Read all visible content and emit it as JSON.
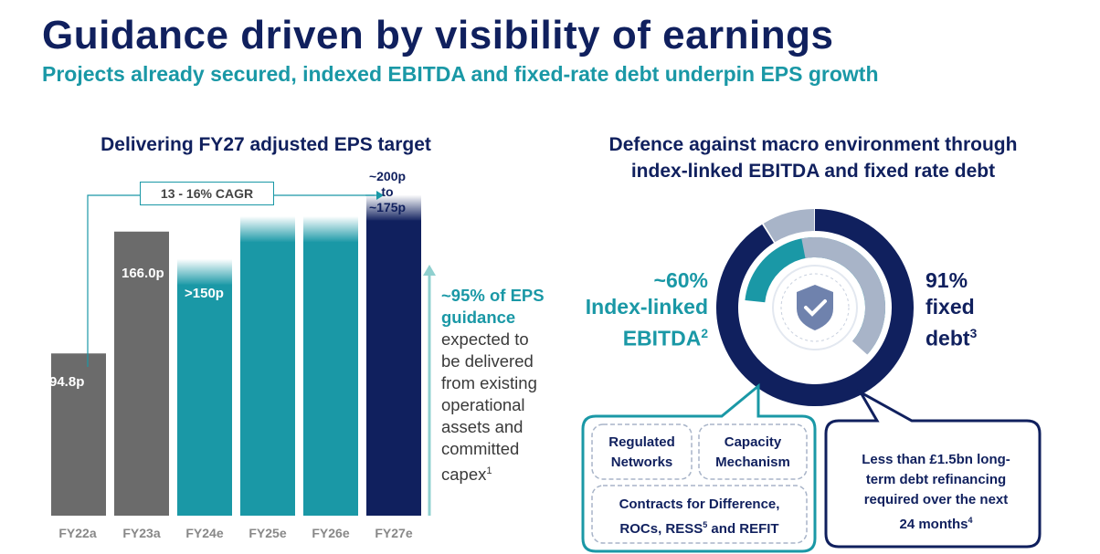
{
  "title": "Guidance driven by visibility of earnings",
  "subtitle": "Projects already secured, indexed EBITDA and fixed-rate debt underpin EPS growth",
  "left_panel": {
    "heading": "Delivering FY27 adjusted EPS target",
    "cagr": "13 - 16% CAGR",
    "fy27_label_line1": "~200p",
    "fy27_label_line2": "to",
    "fy27_label_line3": "~175p",
    "guidance_highlight": "~95% of EPS guidance",
    "guidance_rest": "expected to be delivered from existing operational assets and committed capex",
    "guidance_footnote": "1"
  },
  "right_panel": {
    "heading_line1": "Defence against macro environment through",
    "heading_line2": "index-linked EBITDA and fixed rate debt",
    "index_pct": "~60%",
    "index_label_line1": "Index-linked",
    "index_label_line2": "EBITDA",
    "index_footnote": "2",
    "fixed_pct": "91%",
    "fixed_label_line1": "fixed",
    "fixed_label_line2": "debt",
    "fixed_footnote": "3",
    "box1_line1": "Regulated",
    "box1_line2": "Networks",
    "box2_line1": "Capacity",
    "box2_line2": "Mechanism",
    "box3_line1": "Contracts for Difference,",
    "box3_line2a": "ROCs, RESS",
    "box3_sup": "5",
    "box3_line2b": " and REFIT",
    "debt_box_line1": "Less than £1.5bn long-",
    "debt_box_line2": "term debt refinancing",
    "debt_box_line3": "required over the next",
    "debt_box_line4": "24 months",
    "debt_box_footnote": "4"
  },
  "colors": {
    "navy": "#10205e",
    "teal": "#1a98a6",
    "grey": "#6b6b6b",
    "light_grey": "#a8b4c8"
  },
  "chart_data": [
    {
      "type": "bar",
      "title": "Delivering FY27 adjusted EPS target",
      "categories": [
        "FY22a",
        "FY23a",
        "FY24e",
        "FY25e",
        "FY26e",
        "FY27e"
      ],
      "values": [
        94.8,
        166.0,
        150,
        175,
        175,
        187.5
      ],
      "value_labels": [
        "94.8p",
        "166.0p",
        ">150p",
        "",
        "",
        ""
      ],
      "fy27_range": [
        175,
        200
      ],
      "ylim": [
        0,
        200
      ]
    },
    {
      "type": "pie",
      "title": "Defence against macro environment through index-linked EBITDA and fixed rate debt",
      "series": [
        {
          "name": "fixed debt",
          "values": [
            91,
            9
          ]
        },
        {
          "name": "Index-linked EBITDA",
          "values": [
            60,
            40
          ]
        }
      ]
    }
  ]
}
